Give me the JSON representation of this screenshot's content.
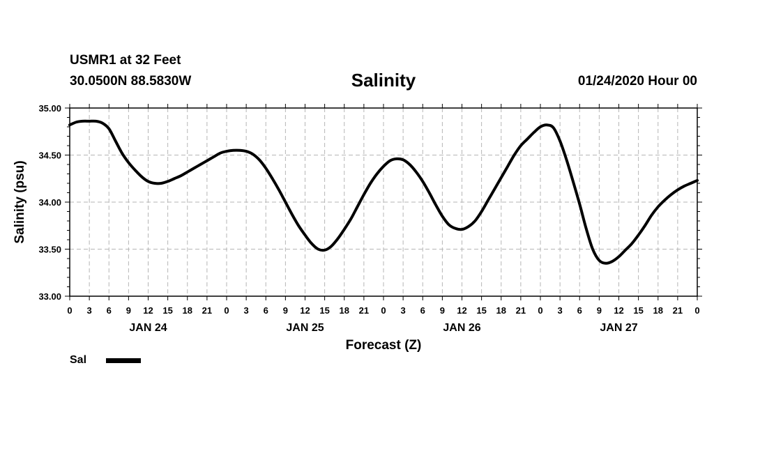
{
  "header": {
    "station": "USMR1 at 32 Feet",
    "coords": "30.0500N 88.5830W",
    "title": "Salinity",
    "datetime": "01/24/2020 Hour 00"
  },
  "legend": {
    "label": "Sal",
    "color": "#000000"
  },
  "chart_data": {
    "type": "line",
    "title": "Salinity",
    "xlabel": "Forecast (Z)",
    "ylabel": "Salinity (psu)",
    "ylim": [
      33.0,
      35.0
    ],
    "yticks": [
      33.0,
      33.5,
      34.0,
      34.5,
      35.0
    ],
    "ytick_labels": [
      "33.00",
      "33.50",
      "34.00",
      "34.50",
      "35.00"
    ],
    "xlim_hours": [
      0,
      96
    ],
    "xtick_labels": [
      "0",
      "3",
      "6",
      "9",
      "12",
      "15",
      "18",
      "21",
      "0",
      "3",
      "6",
      "9",
      "12",
      "15",
      "18",
      "21",
      "0",
      "3",
      "6",
      "9",
      "12",
      "15",
      "18",
      "21",
      "0",
      "3",
      "6",
      "9",
      "12",
      "15",
      "18",
      "21",
      "0"
    ],
    "day_labels": [
      {
        "label": "JAN 24",
        "hour": 12
      },
      {
        "label": "JAN 25",
        "hour": 36
      },
      {
        "label": "JAN 26",
        "hour": 60
      },
      {
        "label": "JAN 27",
        "hour": 84
      }
    ],
    "grid": true,
    "series": [
      {
        "name": "Sal",
        "x": [
          0,
          1,
          2,
          3,
          4,
          5,
          6,
          7,
          8,
          9,
          10,
          11,
          12,
          13,
          14,
          15,
          16,
          17,
          18,
          19,
          20,
          21,
          22,
          23,
          24,
          25,
          26,
          27,
          28,
          29,
          30,
          31,
          32,
          33,
          34,
          35,
          36,
          37,
          38,
          39,
          40,
          41,
          42,
          43,
          44,
          45,
          46,
          47,
          48,
          49,
          50,
          51,
          52,
          53,
          54,
          55,
          56,
          57,
          58,
          59,
          60,
          61,
          62,
          63,
          64,
          65,
          66,
          67,
          68,
          69,
          70,
          71,
          72,
          73,
          74,
          75,
          76,
          77,
          78,
          79,
          80,
          81,
          82,
          83,
          84,
          85,
          86,
          87,
          88,
          89,
          90,
          91,
          92,
          93,
          94,
          95,
          96
        ],
        "values": [
          34.82,
          34.85,
          34.86,
          34.86,
          34.86,
          34.84,
          34.78,
          34.65,
          34.52,
          34.42,
          34.34,
          34.27,
          34.22,
          34.2,
          34.2,
          34.22,
          34.25,
          34.28,
          34.32,
          34.36,
          34.4,
          34.44,
          34.48,
          34.52,
          34.54,
          34.55,
          34.55,
          34.54,
          34.51,
          34.45,
          34.36,
          34.25,
          34.13,
          34.0,
          33.87,
          33.75,
          33.65,
          33.56,
          33.5,
          33.49,
          33.53,
          33.61,
          33.71,
          33.82,
          33.95,
          34.08,
          34.2,
          34.3,
          34.38,
          34.44,
          34.46,
          34.45,
          34.4,
          34.32,
          34.22,
          34.1,
          33.97,
          33.85,
          33.76,
          33.72,
          33.71,
          33.74,
          33.8,
          33.9,
          34.02,
          34.14,
          34.26,
          34.38,
          34.5,
          34.6,
          34.67,
          34.74,
          34.8,
          34.82,
          34.79,
          34.65,
          34.45,
          34.22,
          33.98,
          33.72,
          33.5,
          33.38,
          33.35,
          33.37,
          33.42,
          33.49,
          33.56,
          33.65,
          33.75,
          33.86,
          33.95,
          34.02,
          34.08,
          34.13,
          34.17,
          34.2,
          34.23
        ]
      }
    ]
  }
}
